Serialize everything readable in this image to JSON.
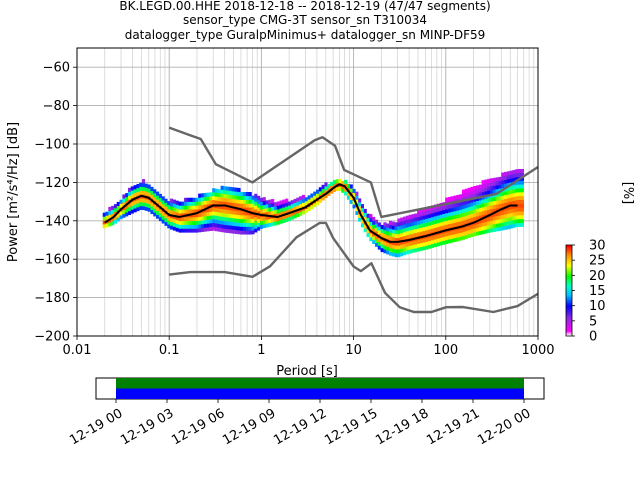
{
  "title_lines": [
    "BK.LEGD.00.HHE   2018-12-18 -- 2018-12-19  (47/47 segments)",
    "sensor_type CMG-3T sensor_sn T310034",
    "datalogger_type GuralpMinimus+ datalogger_sn MINP-DF59"
  ],
  "chart_data": [
    {
      "type": "heatmap",
      "title": "BK.LEGD.00.HHE   2018-12-18 -- 2018-12-19  (47/47 segments)",
      "xlabel": "Period [s]",
      "ylabel": "Power [m²/s⁴/Hz] [dB]",
      "xscale": "log",
      "xlim": [
        0.01,
        1000
      ],
      "ylim": [
        -200,
        -50
      ],
      "xticks": [
        0.01,
        0.1,
        1,
        10,
        100,
        1000
      ],
      "xtick_labels": [
        "0.01",
        "0.1",
        "1",
        "10",
        "100",
        "1000"
      ],
      "yticks": [
        -200,
        -180,
        -160,
        -140,
        -120,
        -100,
        -80,
        -60
      ],
      "ytick_labels": [
        "−200",
        "−180",
        "−160",
        "−140",
        "−120",
        "−100",
        "−80",
        "−60"
      ],
      "grid": true,
      "colorbar": {
        "label": "[%]",
        "min": 0,
        "max": 30,
        "ticks": [
          0,
          5,
          10,
          15,
          20,
          25,
          30
        ],
        "tick_labels": [
          "0",
          "5",
          "10",
          "15",
          "20",
          "25",
          "30"
        ]
      },
      "series": [
        {
          "name": "",
          "style": "mean",
          "color": "#000000",
          "x": [
            0.02,
            0.025,
            0.03,
            0.04,
            0.05,
            0.06,
            0.08,
            0.1,
            0.13,
            0.2,
            0.3,
            0.4,
            0.6,
            0.8,
            1.0,
            1.5,
            2.0,
            3.0,
            4.0,
            5.0,
            6.0,
            7.0,
            8.0,
            10.0,
            12.0,
            15.0,
            20.0,
            25.0,
            30.0,
            40.0,
            60.0,
            100.0,
            150.0,
            200.0,
            300.0,
            400.0,
            500.0,
            600.0
          ],
          "y": [
            -141,
            -138,
            -134,
            -129,
            -127,
            -128,
            -133,
            -137,
            -138,
            -136,
            -132,
            -132,
            -134,
            -136,
            -137,
            -138,
            -136,
            -133,
            -129,
            -126,
            -123,
            -121,
            -122,
            -128,
            -137,
            -145,
            -149,
            -151,
            -151,
            -150,
            -148,
            -145,
            -143,
            -141,
            -137,
            -134,
            -132,
            -132
          ]
        },
        {
          "name": "",
          "style": "noise-model",
          "color": "#666666",
          "x": [
            0.1,
            0.17,
            0.22,
            0.32,
            0.8,
            3.8,
            4.6,
            6.3,
            7.9,
            15.4,
            20.0,
            354.8,
            1000.0
          ],
          "y": [
            -91.5,
            -95.5,
            -97.4,
            -110.5,
            -120.0,
            -98.0,
            -96.5,
            -101.0,
            -113.5,
            -120.0,
            -138.0,
            -126.0,
            -112.0
          ]
        },
        {
          "name": "",
          "style": "noise-model",
          "color": "#666666",
          "x": [
            0.1,
            0.17,
            0.4,
            0.8,
            1.24,
            2.4,
            4.3,
            5.0,
            6.0,
            10.0,
            12.0,
            15.6,
            21.9,
            31.6,
            45.0,
            70.0,
            101.0,
            154.0,
            328.0,
            600.0,
            1000.0
          ],
          "y": [
            -168.0,
            -166.7,
            -166.7,
            -169.2,
            -163.7,
            -148.6,
            -141.1,
            -141.1,
            -149.0,
            -163.8,
            -166.2,
            -162.1,
            -177.5,
            -185.0,
            -187.5,
            -187.5,
            -185.0,
            -184.9,
            -187.5,
            -184.4,
            -178.0
          ]
        }
      ],
      "density_band": {
        "x": [
          0.019,
          0.025,
          0.03,
          0.04,
          0.05,
          0.06,
          0.08,
          0.1,
          0.13,
          0.2,
          0.3,
          0.4,
          0.6,
          0.8,
          1.0,
          1.5,
          2.0,
          3.0,
          4.0,
          5.0,
          6.0,
          7.0,
          8.0,
          10.0,
          12.0,
          15.0,
          20.0,
          25.0,
          30.0,
          40.0,
          60.0,
          100.0,
          150.0,
          200.0,
          300.0,
          400.0,
          500.0,
          600.0,
          700.0
        ],
        "y_low": [
          -144,
          -142,
          -139,
          -136,
          -134,
          -135,
          -140,
          -144,
          -146,
          -146,
          -145,
          -146,
          -147,
          -147,
          -144,
          -142,
          -140,
          -136,
          -132,
          -128,
          -125,
          -124,
          -126,
          -133,
          -142,
          -150,
          -156,
          -158,
          -159,
          -157,
          -155,
          -152,
          -150,
          -148,
          -146,
          -145,
          -144,
          -143,
          -143
        ],
        "y_high": [
          -137,
          -133,
          -129,
          -123,
          -120,
          -121,
          -126,
          -130,
          -131,
          -128,
          -125,
          -123,
          -125,
          -127,
          -129,
          -131,
          -130,
          -128,
          -125,
          -122,
          -120,
          -119,
          -120,
          -124,
          -130,
          -138,
          -143,
          -142,
          -141,
          -138,
          -134,
          -130,
          -126,
          -123,
          -119,
          -117,
          -115,
          -113,
          -113
        ]
      }
    },
    {
      "type": "timeline",
      "x_tick_labels": [
        "12-19 00",
        "12-19 03",
        "12-19 06",
        "12-19 09",
        "12-19 12",
        "12-19 15",
        "12-19 18",
        "12-19 21",
        "12-20 00"
      ],
      "bars": [
        {
          "start": "12-19 00",
          "end": "12-20 00",
          "color": "#008000"
        },
        {
          "start": "12-19 00",
          "end": "12-20 00",
          "color": "#0000ff"
        }
      ]
    }
  ]
}
